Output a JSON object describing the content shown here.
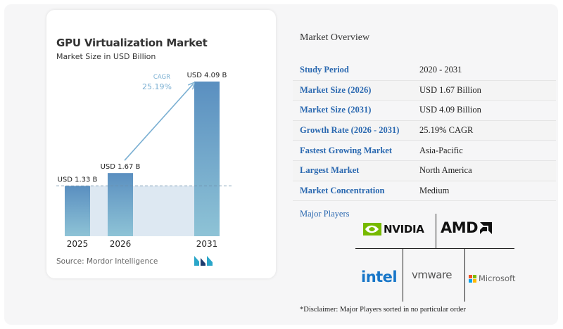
{
  "colors": {
    "bar_top": "#5a8fc0",
    "bar_bottom": "#8ec3d6",
    "arrow": "#7aafd2",
    "baseline_fill": "#dde8f2",
    "baseline_dash": "#6b8ea9",
    "overview_label": "#2a68b0",
    "nvidia_green": "#76b900",
    "intel_blue": "#1776c8",
    "brand_teal": "#2aa6c9",
    "brand_navy": "#1d3b6e"
  },
  "chart_data": {
    "type": "bar",
    "title": "GPU Virtualization Market",
    "subtitle": "Market Size in USD Billion",
    "categories": [
      "2025",
      "2026",
      "2031"
    ],
    "values": [
      1.33,
      1.67,
      4.09
    ],
    "data_labels": [
      "USD 1.33 B",
      "USD 1.67 B",
      "USD 4.09 B"
    ],
    "ylim": [
      0,
      4.09
    ],
    "cagr_label": "CAGR",
    "cagr_value": "25.19%",
    "grid": false,
    "source": "Source: Mordor Intelligence"
  },
  "overview": {
    "title": "Market Overview",
    "rows": [
      {
        "label": "Study Period",
        "value": "2020 - 2031"
      },
      {
        "label": "Market Size (2026)",
        "value": "USD 1.67 Billion"
      },
      {
        "label": "Market Size (2031)",
        "value": "USD 4.09 Billion"
      },
      {
        "label": "Growth Rate (2026 - 2031)",
        "value": "25.19% CAGR"
      },
      {
        "label": "Fastest Growing Market",
        "value": "Asia-Pacific"
      },
      {
        "label": "Largest Market",
        "value": "North America"
      },
      {
        "label": "Market Concentration",
        "value": "Medium"
      }
    ]
  },
  "players": {
    "title": "Major Players",
    "logos": [
      "NVIDIA",
      "AMD",
      "intel",
      "vmware",
      "Microsoft"
    ],
    "disclaimer": "*Disclaimer: Major Players sorted in no particular order"
  },
  "icons": [
    "mordor-intelligence-logo-icon",
    "nvidia-eye-icon",
    "amd-arrow-icon",
    "microsoft-grid-icon"
  ]
}
